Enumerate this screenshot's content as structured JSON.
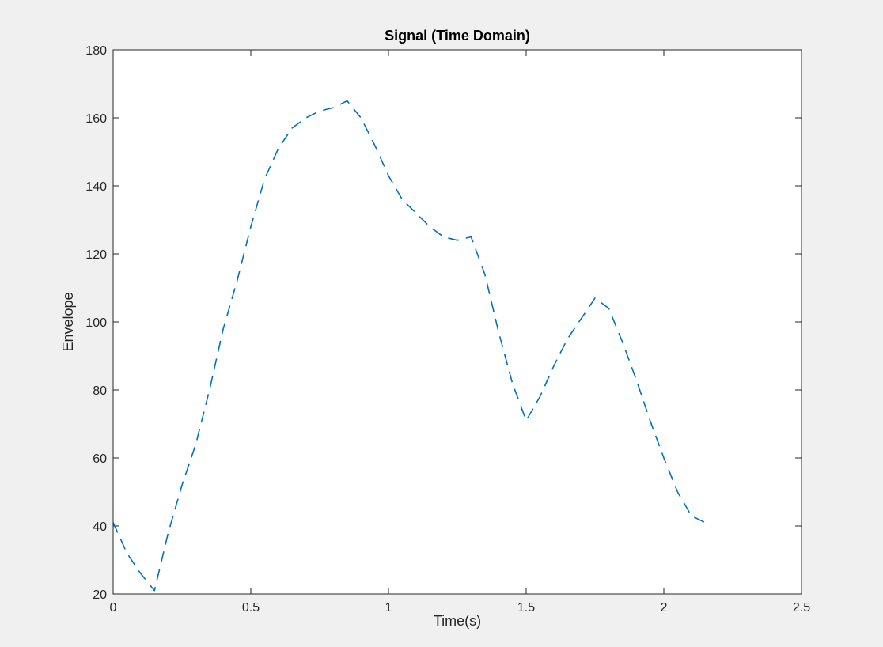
{
  "figure": {
    "background": "#f0f0f0"
  },
  "chart_data": {
    "type": "line",
    "title": "Signal (Time Domain)",
    "xlabel": "Time(s)",
    "ylabel": "Envelope",
    "xlim": [
      0,
      2.5
    ],
    "ylim": [
      20,
      180
    ],
    "xticks": [
      0,
      0.5,
      1,
      1.5,
      2,
      2.5
    ],
    "xtick_labels": [
      "0",
      "0.5",
      "1",
      "1.5",
      "2",
      "2.5"
    ],
    "yticks": [
      20,
      40,
      60,
      80,
      100,
      120,
      140,
      160,
      180
    ],
    "ytick_labels": [
      "20",
      "40",
      "60",
      "80",
      "100",
      "120",
      "140",
      "160",
      "180"
    ],
    "grid": false,
    "legend": "none",
    "series": [
      {
        "color": "#0072bd",
        "line_style": "dashed",
        "x": [
          0,
          0.05,
          0.1,
          0.15,
          0.2,
          0.25,
          0.3,
          0.35,
          0.4,
          0.45,
          0.5,
          0.55,
          0.6,
          0.65,
          0.7,
          0.75,
          0.8,
          0.85,
          0.9,
          0.95,
          1.0,
          1.05,
          1.1,
          1.15,
          1.2,
          1.25,
          1.3,
          1.35,
          1.4,
          1.45,
          1.5,
          1.55,
          1.6,
          1.65,
          1.7,
          1.75,
          1.8,
          1.85,
          1.9,
          1.95,
          2.0,
          2.05,
          2.1,
          2.15
        ],
        "y": [
          41,
          32,
          26,
          21,
          38,
          52,
          64,
          80,
          98,
          112,
          128,
          142,
          151,
          157,
          160,
          162,
          163,
          165,
          160,
          152,
          143,
          136,
          132,
          128,
          125,
          124,
          125,
          114,
          97,
          82,
          71,
          78,
          87,
          95,
          101,
          107,
          104,
          94,
          83,
          71,
          60,
          50,
          43,
          41
        ]
      }
    ]
  }
}
